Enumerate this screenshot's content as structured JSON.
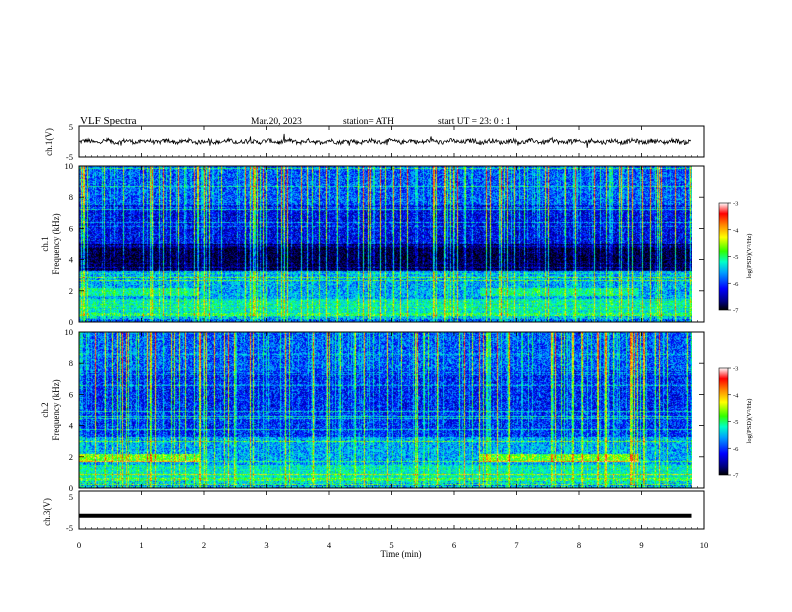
{
  "header": {
    "title": "VLF  Spectra",
    "date": "Mar.20, 2023",
    "station": "station= ATH",
    "start": "start  UT  =    23: 0   : 1"
  },
  "chart_data": [
    {
      "type": "line",
      "name": "ch1-waveform",
      "ylabel": "ch.1(V)",
      "ylim": [
        -5,
        5
      ],
      "y_ticks": [
        "5",
        "-5"
      ],
      "xlim": [
        0,
        10
      ],
      "description_level": 0,
      "color": "#000000"
    },
    {
      "type": "heatmap",
      "name": "ch1-spectrogram",
      "ylabel_top": "ch.1",
      "ylabel": "Frequency (kHz)",
      "xlim": [
        0,
        10
      ],
      "ylim": [
        0,
        10
      ],
      "y_ticks": [
        "0",
        "2",
        "4",
        "6",
        "8",
        "10"
      ],
      "data_end_min": 9.8,
      "colorbar": {
        "label": "log(PSD)(V²/Hz)",
        "range": [
          -7,
          -3
        ],
        "ticks": [
          "-3",
          "-4",
          "-5",
          "-6",
          "-7"
        ],
        "colors": [
          "#000000",
          "#00007f",
          "#0000ff",
          "#00a0ff",
          "#00ffc8",
          "#32ff00",
          "#ffff00",
          "#ff8000",
          "#ff0000",
          "#ffffff"
        ]
      }
    },
    {
      "type": "heatmap",
      "name": "ch2-spectrogram",
      "ylabel_top": "ch.2",
      "ylabel": "Frequency (kHz)",
      "xlim": [
        0,
        10
      ],
      "ylim": [
        0,
        10
      ],
      "y_ticks": [
        "0",
        "2",
        "4",
        "6",
        "8",
        "10"
      ],
      "data_end_min": 9.8,
      "colorbar": {
        "label": "log(PSD)(V²/Hz)",
        "range": [
          -7,
          -3
        ],
        "ticks": [
          "-3",
          "-4",
          "-5",
          "-6",
          "-7"
        ],
        "colors": [
          "#000000",
          "#00007f",
          "#0000ff",
          "#00a0ff",
          "#00ffc8",
          "#32ff00",
          "#ffff00",
          "#ff8000",
          "#ff0000",
          "#ffffff"
        ]
      }
    },
    {
      "type": "line",
      "name": "ch3-waveform",
      "ylabel": "ch.3(V)",
      "ylim": [
        -5,
        5
      ],
      "y_ticks": [
        "5",
        "0",
        "-5"
      ],
      "xlim": [
        0,
        10
      ],
      "level": -1.5,
      "color": "#000000"
    }
  ],
  "xaxis": {
    "label": "Time (min)",
    "ticks": [
      "0",
      "1",
      "2",
      "3",
      "4",
      "5",
      "6",
      "7",
      "8",
      "9",
      "10"
    ]
  }
}
